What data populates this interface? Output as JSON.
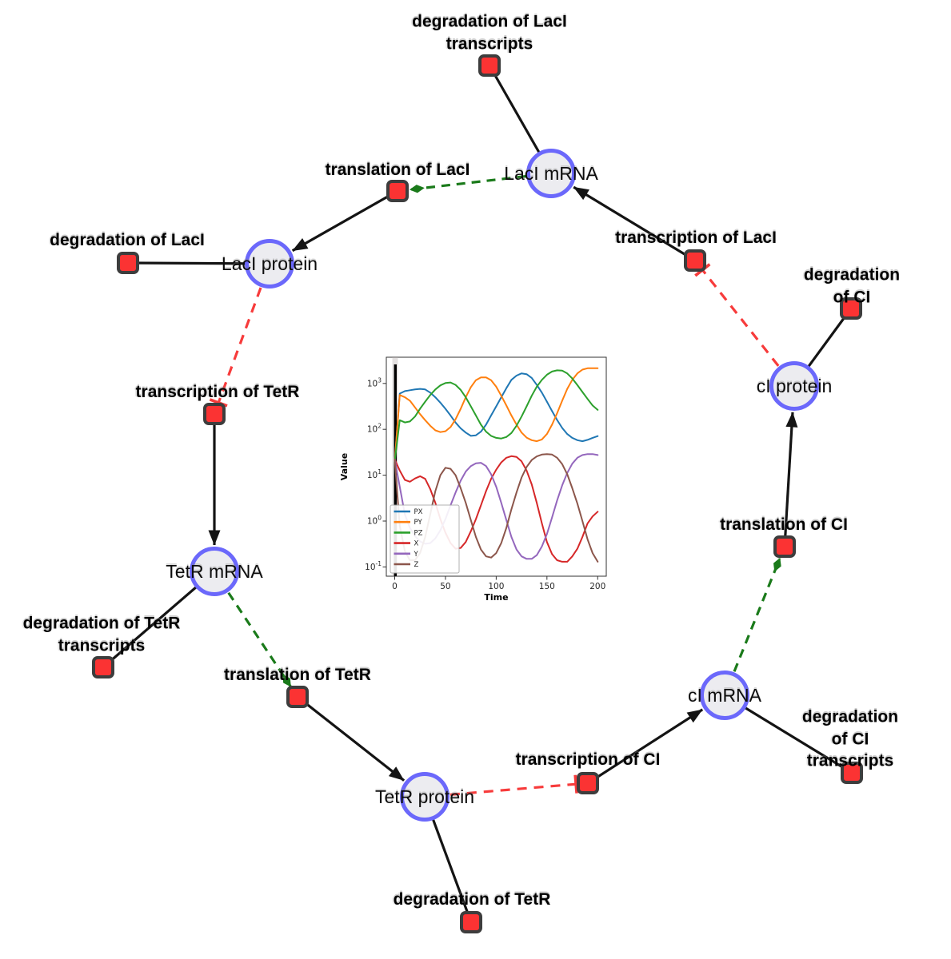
{
  "network": {
    "species": [
      {
        "id": "laci-mrna",
        "label": "LacI mRNA"
      },
      {
        "id": "laci-protein",
        "label": "LacI protein"
      },
      {
        "id": "tetr-mrna",
        "label": "TetR mRNA"
      },
      {
        "id": "tetr-protein",
        "label": "TetR protein"
      },
      {
        "id": "ci-mrna",
        "label": "cI mRNA"
      },
      {
        "id": "ci-protein",
        "label": "cI protein"
      }
    ],
    "reactions": [
      {
        "id": "deg-laci-tx",
        "label": "degradation of LacI\ntranscripts"
      },
      {
        "id": "translation-laci",
        "label": "translation of LacI"
      },
      {
        "id": "transcription-laci",
        "label": "transcription of LacI"
      },
      {
        "id": "deg-laci",
        "label": "degradation of LacI"
      },
      {
        "id": "deg-ci",
        "label": "degradation of CI"
      },
      {
        "id": "transcription-tetr",
        "label": "transcription of TetR"
      },
      {
        "id": "deg-tetr-tx",
        "label": "degradation of TetR\ntranscripts"
      },
      {
        "id": "translation-tetr",
        "label": "translation of TetR"
      },
      {
        "id": "deg-tetr",
        "label": "degradation of TetR"
      },
      {
        "id": "transcription-ci",
        "label": "transcription of CI"
      },
      {
        "id": "deg-ci-tx",
        "label": "degradation of CI\ntranscripts"
      },
      {
        "id": "translation-ci",
        "label": "translation of CI"
      }
    ],
    "edges": [
      {
        "from": "transcription-laci",
        "to": "laci-mrna",
        "type": "production"
      },
      {
        "from": "laci-mrna",
        "to": "deg-laci-tx",
        "type": "consumption"
      },
      {
        "from": "laci-mrna",
        "to": "translation-laci",
        "type": "modifier"
      },
      {
        "from": "translation-laci",
        "to": "laci-protein",
        "type": "production"
      },
      {
        "from": "laci-protein",
        "to": "deg-laci",
        "type": "consumption"
      },
      {
        "from": "laci-protein",
        "to": "transcription-tetr",
        "type": "inhibition"
      },
      {
        "from": "transcription-tetr",
        "to": "tetr-mrna",
        "type": "production"
      },
      {
        "from": "tetr-mrna",
        "to": "deg-tetr-tx",
        "type": "consumption"
      },
      {
        "from": "tetr-mrna",
        "to": "translation-tetr",
        "type": "modifier"
      },
      {
        "from": "translation-tetr",
        "to": "tetr-protein",
        "type": "production"
      },
      {
        "from": "tetr-protein",
        "to": "deg-tetr",
        "type": "consumption"
      },
      {
        "from": "tetr-protein",
        "to": "transcription-ci",
        "type": "inhibition"
      },
      {
        "from": "transcription-ci",
        "to": "ci-mrna",
        "type": "production"
      },
      {
        "from": "ci-mrna",
        "to": "deg-ci-tx",
        "type": "consumption"
      },
      {
        "from": "ci-mrna",
        "to": "translation-ci",
        "type": "modifier"
      },
      {
        "from": "translation-ci",
        "to": "ci-protein",
        "type": "production"
      },
      {
        "from": "ci-protein",
        "to": "deg-ci",
        "type": "consumption"
      },
      {
        "from": "ci-protein",
        "to": "transcription-laci",
        "type": "inhibition"
      }
    ],
    "colors": {
      "species_fill": "#ececf0",
      "species_border": "#6b68fb",
      "reaction_fill": "#fb3333",
      "reaction_border": "#3d3d3d",
      "edge_black": "#141414",
      "edge_modifier_green": "#1a7a1a",
      "edge_inhibition_red": "#f73b3b"
    }
  },
  "chart_data": {
    "type": "line",
    "title": "",
    "xlabel": "Time",
    "ylabel": "Value",
    "yscale": "log",
    "grid": false,
    "legend_position": "lower left",
    "x_ticks": [
      0,
      50,
      100,
      150,
      200
    ],
    "y_tick_exponents": [
      -1,
      0,
      1,
      2,
      3
    ],
    "xlim": [
      -8,
      209
    ],
    "ylim": [
      0.063,
      3700
    ],
    "initial_marker_x": 0,
    "x": [
      0,
      5,
      10,
      15,
      20,
      25,
      30,
      35,
      40,
      45,
      50,
      55,
      60,
      65,
      70,
      75,
      80,
      85,
      90,
      95,
      100,
      105,
      110,
      115,
      120,
      125,
      130,
      135,
      140,
      145,
      150,
      155,
      160,
      165,
      170,
      175,
      180,
      185,
      190,
      195,
      200
    ],
    "series": [
      {
        "name": "PX",
        "color": "#1f77b4",
        "values": [
          20,
          600,
          680,
          710,
          740,
          760,
          740,
          630,
          500,
          380,
          280,
          200,
          140,
          105,
          85,
          72,
          74,
          89,
          126,
          200,
          316,
          500,
          790,
          1200,
          1480,
          1660,
          1590,
          1320,
          930,
          630,
          400,
          250,
          160,
          107,
          79,
          65,
          58,
          55,
          59,
          65,
          71
        ]
      },
      {
        "name": "PY",
        "color": "#ff7f0e",
        "values": [
          20,
          560,
          500,
          420,
          300,
          214,
          158,
          120,
          95,
          87,
          91,
          112,
          166,
          280,
          500,
          830,
          1180,
          1350,
          1350,
          1180,
          850,
          540,
          330,
          200,
          126,
          85,
          66,
          58,
          55,
          60,
          79,
          126,
          224,
          420,
          760,
          1200,
          1660,
          2000,
          2140,
          2150,
          2150
        ]
      },
      {
        "name": "PZ",
        "color": "#2ca02c",
        "values": [
          20,
          158,
          141,
          148,
          190,
          282,
          400,
          560,
          740,
          910,
          1020,
          1050,
          930,
          724,
          500,
          316,
          200,
          126,
          89,
          72,
          65,
          63,
          68,
          83,
          120,
          190,
          316,
          540,
          850,
          1200,
          1550,
          1820,
          1930,
          1900,
          1650,
          1280,
          920,
          650,
          460,
          330,
          265
        ]
      },
      {
        "name": "X",
        "color": "#d62728",
        "values": [
          22,
          12.6,
          7.9,
          7.2,
          8.5,
          9.5,
          8.3,
          5,
          2.5,
          1.1,
          0.56,
          0.33,
          0.25,
          0.26,
          0.35,
          0.6,
          1.1,
          2.2,
          4.5,
          8.3,
          13.2,
          19,
          24,
          26,
          25,
          20,
          12.6,
          6.3,
          2.5,
          0.89,
          0.35,
          0.19,
          0.14,
          0.13,
          0.13,
          0.17,
          0.25,
          0.45,
          0.89,
          1.26,
          1.6
        ]
      },
      {
        "name": "Y",
        "color": "#9467bd",
        "values": [
          22,
          5.6,
          1.4,
          0.71,
          0.47,
          0.36,
          0.32,
          0.33,
          0.42,
          0.63,
          1.1,
          2.2,
          4.2,
          7.6,
          12,
          15.8,
          18.2,
          18.6,
          15.8,
          10.5,
          5.6,
          2.5,
          1.05,
          0.45,
          0.24,
          0.17,
          0.15,
          0.15,
          0.18,
          0.28,
          0.52,
          1.2,
          2.8,
          6,
          11.2,
          17.8,
          24,
          27.5,
          28.8,
          28.8,
          27.5
        ]
      },
      {
        "name": "Z",
        "color": "#8c564b",
        "values": [
          22,
          0.79,
          0.22,
          0.14,
          0.14,
          0.2,
          0.45,
          1.4,
          4.5,
          10,
          14.5,
          13.8,
          10,
          5.2,
          2.5,
          1.05,
          0.45,
          0.24,
          0.17,
          0.16,
          0.2,
          0.33,
          0.71,
          1.8,
          4.2,
          8.9,
          15.1,
          21.4,
          25.7,
          28.2,
          28.8,
          28.2,
          24,
          17.4,
          10.5,
          5.2,
          2.4,
          1,
          0.4,
          0.2,
          0.13
        ]
      }
    ]
  }
}
